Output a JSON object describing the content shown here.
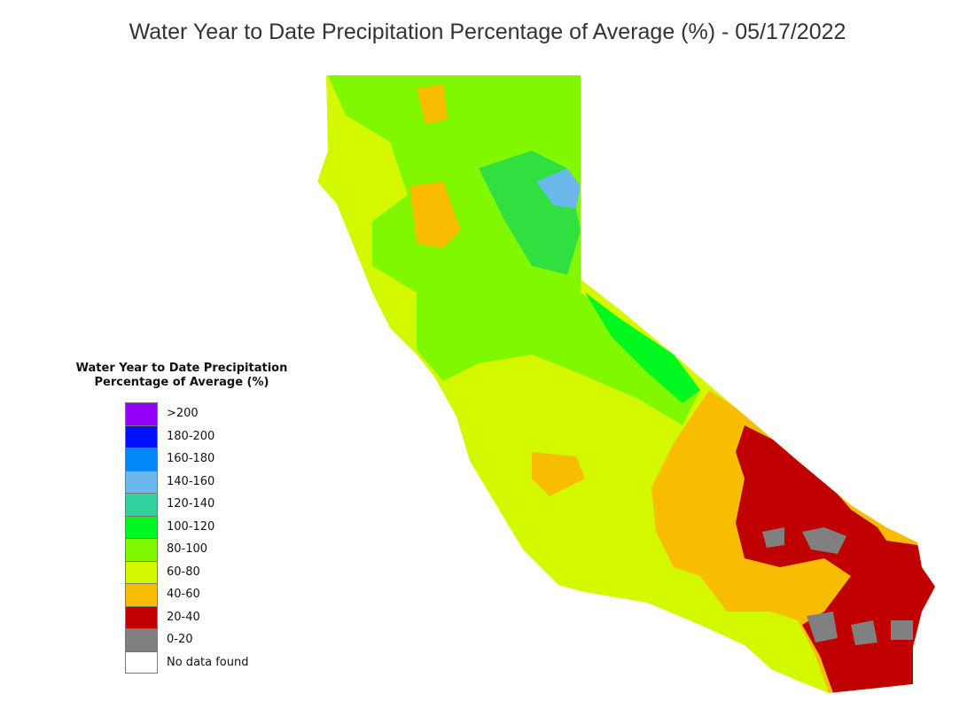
{
  "title": "Water Year to Date Precipitation Percentage of Average (%) - 05/17/2022",
  "legend": {
    "title_line1": "Water Year to Date Precipitation",
    "title_line2": "Percentage of Average (%)",
    "items": [
      {
        "label": ">200",
        "color": "#9400f8"
      },
      {
        "label": "180-200",
        "color": "#0010f8"
      },
      {
        "label": "160-180",
        "color": "#0088f8"
      },
      {
        "label": "140-160",
        "color": "#6cb8ec"
      },
      {
        "label": "120-140",
        "color": "#30d0a0"
      },
      {
        "label": "100-120",
        "color": "#00f820"
      },
      {
        "label": "80-100",
        "color": "#80f800"
      },
      {
        "label": "60-80",
        "color": "#d4f800"
      },
      {
        "label": "40-60",
        "color": "#f8bc00"
      },
      {
        "label": "20-40",
        "color": "#c00000"
      },
      {
        "label": "0-20",
        "color": "#808080"
      },
      {
        "label": "No data found",
        "color": "#ffffff"
      }
    ]
  }
}
